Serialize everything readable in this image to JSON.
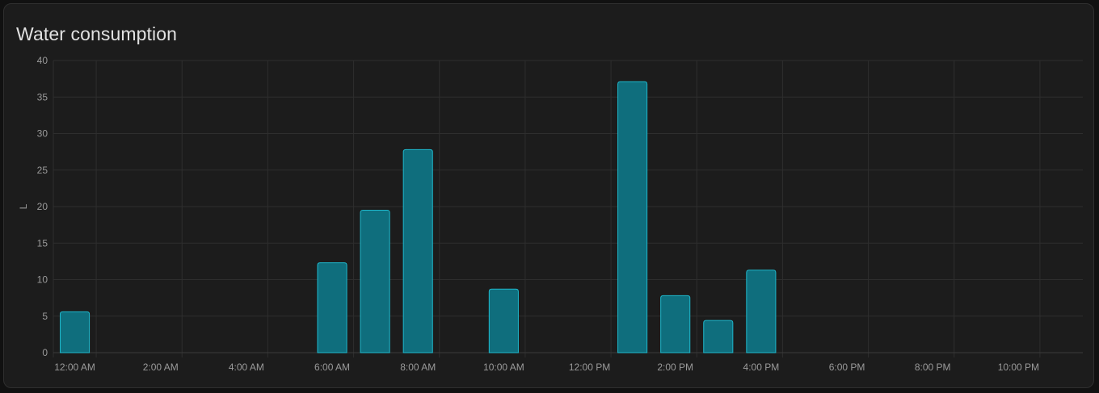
{
  "card": {
    "title": "Water consumption"
  },
  "colors": {
    "card_background": "#1c1c1c",
    "grid": "#2e2e2e",
    "bar_fill": "#0f6e7d",
    "bar_stroke": "#1fb8cc",
    "text": "#9a9a9a"
  },
  "chart_data": {
    "type": "bar",
    "title": "Water consumption",
    "ylabel": "L",
    "xlabel": "",
    "ylim": [
      0,
      40
    ],
    "y_ticks": [
      0,
      5,
      10,
      15,
      20,
      25,
      30,
      35,
      40
    ],
    "x_range_hours": [
      0,
      24
    ],
    "x_ticks": [
      {
        "hour": 0,
        "label": "12:00 AM"
      },
      {
        "hour": 2,
        "label": "2:00 AM"
      },
      {
        "hour": 4,
        "label": "4:00 AM"
      },
      {
        "hour": 6,
        "label": "6:00 AM"
      },
      {
        "hour": 8,
        "label": "8:00 AM"
      },
      {
        "hour": 10,
        "label": "10:00 AM"
      },
      {
        "hour": 12,
        "label": "12:00 PM"
      },
      {
        "hour": 14,
        "label": "2:00 PM"
      },
      {
        "hour": 16,
        "label": "4:00 PM"
      },
      {
        "hour": 18,
        "label": "6:00 PM"
      },
      {
        "hour": 20,
        "label": "8:00 PM"
      },
      {
        "hour": 22,
        "label": "10:00 PM"
      }
    ],
    "grid": true,
    "series": [
      {
        "hours": [
          0,
          6,
          7,
          8,
          10,
          13,
          14,
          15,
          16
        ],
        "values": [
          5.6,
          12.3,
          19.5,
          27.8,
          8.7,
          37.1,
          7.8,
          4.4,
          11.3
        ]
      }
    ]
  }
}
